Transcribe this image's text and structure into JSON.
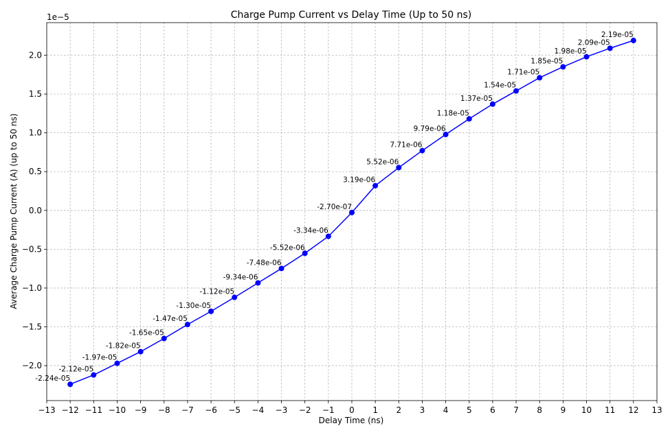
{
  "chart_data": {
    "type": "line",
    "title": "Charge Pump Current vs Delay Time (Up to 50 ns)",
    "xlabel": "Delay Time (ns)",
    "ylabel": "Average Charge Pump Current (A) (up to 50 ns)",
    "y_offset_text": "1e−5",
    "xlim": [
      -13,
      13
    ],
    "ylim": [
      -2.45e-05,
      2.42e-05
    ],
    "x_ticks": [
      -13,
      -12,
      -11,
      -10,
      -9,
      -8,
      -7,
      -6,
      -5,
      -4,
      -3,
      -2,
      -1,
      0,
      1,
      2,
      3,
      4,
      5,
      6,
      7,
      8,
      9,
      10,
      11,
      12,
      13
    ],
    "x_tick_labels": [
      "−13",
      "−12",
      "−11",
      "−10",
      "−9",
      "−8",
      "−7",
      "−6",
      "−5",
      "−4",
      "−3",
      "−2",
      "−1",
      "0",
      "1",
      "2",
      "3",
      "4",
      "5",
      "6",
      "7",
      "8",
      "9",
      "10",
      "11",
      "12",
      "13"
    ],
    "y_ticks": [
      -2e-05,
      -1.5e-05,
      -1e-05,
      -5e-06,
      0,
      5e-06,
      1e-05,
      1.5e-05,
      2e-05
    ],
    "y_tick_labels": [
      "−2.0",
      "−1.5",
      "−1.0",
      "−0.5",
      "0.0",
      "0.5",
      "1.0",
      "1.5",
      "2.0"
    ],
    "grid": true,
    "line_color": "#0000ff",
    "x": [
      -12,
      -11,
      -10,
      -9,
      -8,
      -7,
      -6,
      -5,
      -4,
      -3,
      -2,
      -1,
      0,
      1,
      2,
      3,
      4,
      5,
      6,
      7,
      8,
      9,
      10,
      11,
      12
    ],
    "values": [
      -2.24e-05,
      -2.12e-05,
      -1.97e-05,
      -1.82e-05,
      -1.65e-05,
      -1.47e-05,
      -1.3e-05,
      -1.12e-05,
      -9.34e-06,
      -7.48e-06,
      -5.52e-06,
      -3.34e-06,
      -2.7e-07,
      3.19e-06,
      5.52e-06,
      7.71e-06,
      9.79e-06,
      1.18e-05,
      1.37e-05,
      1.54e-05,
      1.71e-05,
      1.85e-05,
      1.98e-05,
      2.09e-05,
      2.19e-05
    ],
    "data_labels": [
      "-2.24e-05",
      "-2.12e-05",
      "-1.97e-05",
      "-1.82e-05",
      "-1.65e-05",
      "-1.47e-05",
      "-1.30e-05",
      "-1.12e-05",
      "-9.34e-06",
      "-7.48e-06",
      "-5.52e-06",
      "-3.34e-06",
      "-2.70e-07",
      "3.19e-06",
      "5.52e-06",
      "7.71e-06",
      "9.79e-06",
      "1.18e-05",
      "1.37e-05",
      "1.54e-05",
      "1.71e-05",
      "1.85e-05",
      "1.98e-05",
      "2.09e-05",
      "2.19e-05"
    ]
  }
}
